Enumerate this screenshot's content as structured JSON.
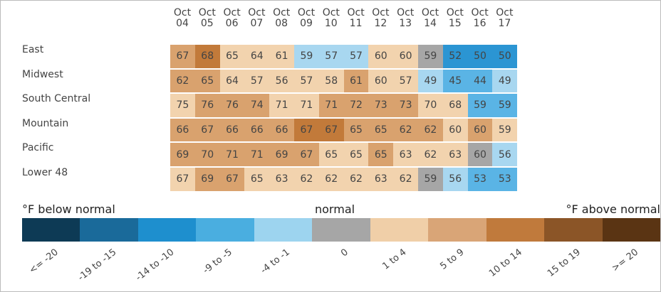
{
  "chart_data": {
    "type": "heatmap",
    "x": [
      "Oct 04",
      "Oct 05",
      "Oct 06",
      "Oct 07",
      "Oct 08",
      "Oct 09",
      "Oct 10",
      "Oct 11",
      "Oct 12",
      "Oct 13",
      "Oct 14",
      "Oct 15",
      "Oct 16",
      "Oct 17"
    ],
    "rows": [
      "East",
      "Midwest",
      "South Central",
      "Mountain",
      "Pacific",
      "Lower 48"
    ],
    "values": [
      [
        67,
        68,
        65,
        64,
        61,
        59,
        57,
        57,
        60,
        60,
        59,
        52,
        50,
        50
      ],
      [
        62,
        65,
        64,
        57,
        56,
        57,
        58,
        61,
        60,
        57,
        49,
        45,
        44,
        49
      ],
      [
        75,
        76,
        76,
        74,
        71,
        71,
        71,
        72,
        73,
        73,
        70,
        68,
        59,
        59
      ],
      [
        66,
        67,
        66,
        66,
        66,
        67,
        67,
        65,
        65,
        62,
        62,
        60,
        60,
        59
      ],
      [
        69,
        70,
        71,
        71,
        69,
        67,
        65,
        65,
        65,
        63,
        62,
        63,
        60,
        56
      ],
      [
        67,
        69,
        67,
        65,
        63,
        62,
        62,
        62,
        63,
        62,
        59,
        56,
        53,
        53
      ]
    ],
    "colors": [
      [
        "#d9a26e",
        "#c27a3a",
        "#f2d3ae",
        "#f2d3ae",
        "#f2d3ae",
        "#a8d7f0",
        "#a8d7f0",
        "#a8d7f0",
        "#f2d3ae",
        "#f2d3ae",
        "#a6a6a6",
        "#2b95d3",
        "#2b95d3",
        "#2b95d3"
      ],
      [
        "#d9a26e",
        "#d9a26e",
        "#f2d3ae",
        "#f2d3ae",
        "#f2d3ae",
        "#f2d3ae",
        "#f2d3ae",
        "#d9a26e",
        "#f2d3ae",
        "#f2d3ae",
        "#a8d7f0",
        "#5ab4e5",
        "#5ab4e5",
        "#a8d7f0"
      ],
      [
        "#f2d3ae",
        "#d9a26e",
        "#d9a26e",
        "#d9a26e",
        "#f2d3ae",
        "#f2d3ae",
        "#d9a26e",
        "#d9a26e",
        "#d9a26e",
        "#d9a26e",
        "#f2d3ae",
        "#f2d3ae",
        "#5ab4e5",
        "#5ab4e5"
      ],
      [
        "#d9a26e",
        "#d9a26e",
        "#d9a26e",
        "#d9a26e",
        "#d9a26e",
        "#c27a3a",
        "#c27a3a",
        "#d9a26e",
        "#d9a26e",
        "#d9a26e",
        "#d9a26e",
        "#f2d3ae",
        "#d9a26e",
        "#f2d3ae"
      ],
      [
        "#d9a26e",
        "#d9a26e",
        "#d9a26e",
        "#d9a26e",
        "#d9a26e",
        "#d9a26e",
        "#f2d3ae",
        "#f2d3ae",
        "#d9a26e",
        "#f2d3ae",
        "#f2d3ae",
        "#f2d3ae",
        "#a6a6a6",
        "#a8d7f0"
      ],
      [
        "#f2d3ae",
        "#d9a26e",
        "#d9a26e",
        "#f2d3ae",
        "#f2d3ae",
        "#f2d3ae",
        "#f2d3ae",
        "#f2d3ae",
        "#f2d3ae",
        "#f2d3ae",
        "#a6a6a6",
        "#a8d7f0",
        "#5ab4e5",
        "#5ab4e5"
      ]
    ],
    "legend": {
      "title_left": "°F below normal",
      "title_center": "normal",
      "title_right": "°F above normal",
      "labels": [
        "<= -20",
        "-19 to -15",
        "-14 to -10",
        "-9 to -5",
        "-4 to -1",
        "0",
        "1 to 4",
        "5 to 9",
        "10 to 14",
        "15 to 19",
        ">= 20"
      ],
      "colors": [
        "#0d3a55",
        "#1a6a9a",
        "#1e8fce",
        "#4aaee0",
        "#9dd4ef",
        "#a6a6a6",
        "#f0cfa8",
        "#d9a577",
        "#c07a3c",
        "#8b5527",
        "#5a3413"
      ]
    }
  }
}
